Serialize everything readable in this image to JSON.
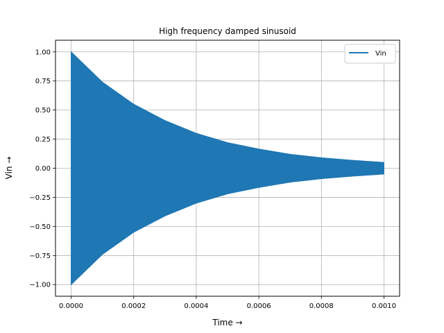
{
  "chart_data": {
    "type": "line",
    "title": "High frequency damped sinusoid",
    "xlabel": "Time →",
    "ylabel": "Vin →",
    "xlim": [
      -5e-05,
      0.00105
    ],
    "ylim": [
      -1.1,
      1.1
    ],
    "xticks": [
      0.0,
      0.0002,
      0.0004,
      0.0006,
      0.0008,
      0.001
    ],
    "xtick_labels": [
      "0.0000",
      "0.0002",
      "0.0004",
      "0.0006",
      "0.0008",
      "0.0010"
    ],
    "yticks": [
      -1.0,
      -0.75,
      -0.5,
      -0.25,
      0.0,
      0.25,
      0.5,
      0.75,
      1.0
    ],
    "ytick_labels": [
      "−1.00",
      "−0.75",
      "−0.50",
      "−0.25",
      "0.00",
      "0.25",
      "0.50",
      "0.75",
      "1.00"
    ],
    "grid": true,
    "legend_position": "top-right",
    "series": [
      {
        "name": "Vin",
        "color": "#1f77b4",
        "envelope": {
          "x": [
            0.0,
            0.0001,
            0.0002,
            0.0003,
            0.0004,
            0.0005,
            0.0006,
            0.0007,
            0.0008,
            0.0009,
            0.001
          ],
          "upper": [
            1.0,
            0.74,
            0.55,
            0.41,
            0.3,
            0.22,
            0.165,
            0.12,
            0.09,
            0.068,
            0.05
          ],
          "lower": [
            -1.0,
            -0.74,
            -0.55,
            -0.41,
            -0.3,
            -0.22,
            -0.165,
            -0.12,
            -0.09,
            -0.068,
            -0.05
          ]
        }
      }
    ]
  }
}
